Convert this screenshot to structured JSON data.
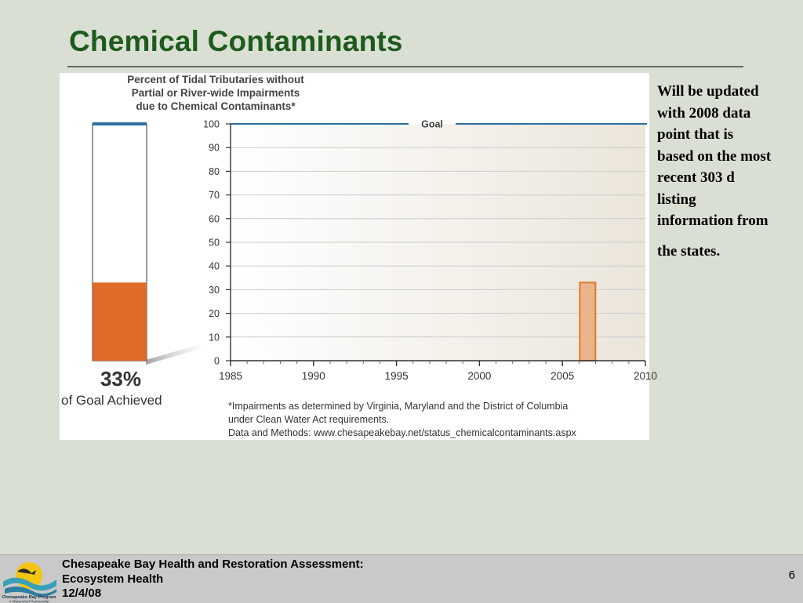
{
  "slide": {
    "title": "Chemical Contaminants",
    "note_lines": [
      "Will be updated",
      "with 2008 data",
      "point that is",
      "based on the most",
      "recent 303 d",
      "listing",
      "information from",
      "the states."
    ]
  },
  "chart_data": {
    "type": "bar",
    "title_lines": [
      "Percent of Tidal Tributaries without",
      "Partial or River-wide Impairments",
      "due to Chemical Contaminants*"
    ],
    "x": [
      2006
    ],
    "values": [
      33
    ],
    "xlim": [
      1985,
      2010
    ],
    "xticks": [
      1985,
      1990,
      1995,
      2000,
      2005,
      2010
    ],
    "ylim": [
      0,
      100
    ],
    "yticks": [
      0,
      10,
      20,
      30,
      40,
      50,
      60,
      70,
      80,
      90,
      100
    ],
    "goal": {
      "value": 100,
      "label": "Goal"
    },
    "progress": {
      "percent": 33,
      "label": "33%",
      "caption": "of Goal Achieved"
    },
    "footnotes": [
      "*Impairments as determined by Virginia, Maryland and the District of Columbia",
      "under Clean Water Act requirements.",
      "Data and Methods: www.chesapeakebay.net/status_chemicalcontaminants.aspx"
    ],
    "grid": true,
    "colors": {
      "bar_fill": "#e8b48c",
      "bar_stroke": "#e07a2e",
      "progress_fill": "#e06a28",
      "goal_line": "#2f6f9f"
    }
  },
  "footer": {
    "lines": [
      "Chesapeake Bay Health and Restoration Assessment:",
      "Ecosystem Health",
      "12/4/08"
    ],
    "page_number": "6",
    "logo": {
      "name": "Chesapeake Bay Program",
      "tagline": "A Watershed Partnership"
    }
  }
}
